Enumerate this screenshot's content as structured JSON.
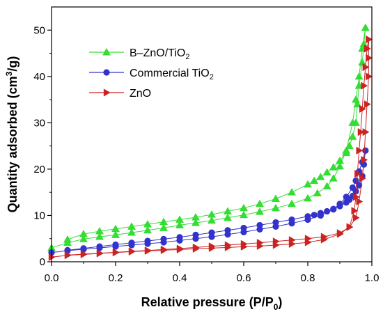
{
  "chart_data": {
    "type": "scatter",
    "title": "",
    "xlabel": {
      "main": "Relative pressure (P/P",
      "sub": "0",
      "end": ")"
    },
    "ylabel": {
      "main": "Quantity adsorbed (cm",
      "sup": "3",
      "end": "/g)"
    },
    "xlim": [
      0,
      1.0
    ],
    "ylim": [
      0,
      55
    ],
    "xticks": [
      "0.0",
      "0.2",
      "0.4",
      "0.6",
      "0.8",
      "1.0"
    ],
    "yticks": [
      "0",
      "10",
      "20",
      "30",
      "40",
      "50"
    ],
    "grid": false,
    "legend_position": "top-left",
    "series": [
      {
        "name": "B–ZnO/TiO",
        "name_sub": "2",
        "color": "#33dd33",
        "marker": "triangle-up",
        "adsorption": [
          [
            0.0,
            3.0
          ],
          [
            0.05,
            4.1
          ],
          [
            0.1,
            4.9
          ],
          [
            0.15,
            5.4
          ],
          [
            0.2,
            5.8
          ],
          [
            0.25,
            6.3
          ],
          [
            0.3,
            6.8
          ],
          [
            0.35,
            7.3
          ],
          [
            0.4,
            7.9
          ],
          [
            0.45,
            8.4
          ],
          [
            0.5,
            8.9
          ],
          [
            0.55,
            9.5
          ],
          [
            0.6,
            10.1
          ],
          [
            0.65,
            10.8
          ],
          [
            0.7,
            11.6
          ],
          [
            0.75,
            12.5
          ],
          [
            0.8,
            13.7
          ],
          [
            0.83,
            14.8
          ],
          [
            0.86,
            16.3
          ],
          [
            0.88,
            18.0
          ],
          [
            0.9,
            20.6
          ],
          [
            0.92,
            24.0
          ],
          [
            0.94,
            30.0
          ],
          [
            0.95,
            35.0
          ],
          [
            0.96,
            40.0
          ],
          [
            0.97,
            46.0
          ],
          [
            0.98,
            50.5
          ]
        ],
        "desorption": [
          [
            0.98,
            50.5
          ],
          [
            0.975,
            47.0
          ],
          [
            0.97,
            43.0
          ],
          [
            0.96,
            38.0
          ],
          [
            0.955,
            34.0
          ],
          [
            0.95,
            30.0
          ],
          [
            0.94,
            27.0
          ],
          [
            0.93,
            25.0
          ],
          [
            0.92,
            23.5
          ],
          [
            0.9,
            21.8
          ],
          [
            0.88,
            20.4
          ],
          [
            0.86,
            19.3
          ],
          [
            0.84,
            18.3
          ],
          [
            0.82,
            17.5
          ],
          [
            0.8,
            16.7
          ],
          [
            0.75,
            15.0
          ],
          [
            0.7,
            13.6
          ],
          [
            0.65,
            12.5
          ],
          [
            0.6,
            11.6
          ],
          [
            0.55,
            10.9
          ],
          [
            0.5,
            10.2
          ],
          [
            0.45,
            9.6
          ],
          [
            0.4,
            9.1
          ],
          [
            0.35,
            8.6
          ],
          [
            0.3,
            8.1
          ],
          [
            0.25,
            7.6
          ],
          [
            0.2,
            7.1
          ],
          [
            0.15,
            6.6
          ],
          [
            0.1,
            6.0
          ],
          [
            0.05,
            4.8
          ]
        ]
      },
      {
        "name": "Commercial TiO",
        "name_sub": "2",
        "color": "#3333cc",
        "marker": "circle",
        "adsorption": [
          [
            0.0,
            2.0
          ],
          [
            0.05,
            2.4
          ],
          [
            0.1,
            2.7
          ],
          [
            0.15,
            3.0
          ],
          [
            0.2,
            3.3
          ],
          [
            0.25,
            3.6
          ],
          [
            0.3,
            3.9
          ],
          [
            0.35,
            4.2
          ],
          [
            0.4,
            4.6
          ],
          [
            0.45,
            5.0
          ],
          [
            0.5,
            5.4
          ],
          [
            0.55,
            5.9
          ],
          [
            0.6,
            6.4
          ],
          [
            0.65,
            7.0
          ],
          [
            0.7,
            7.6
          ],
          [
            0.75,
            8.3
          ],
          [
            0.8,
            9.1
          ],
          [
            0.84,
            10.0
          ],
          [
            0.88,
            11.3
          ],
          [
            0.9,
            12.5
          ],
          [
            0.92,
            14.0
          ],
          [
            0.94,
            16.0
          ],
          [
            0.95,
            17.5
          ],
          [
            0.96,
            19.5
          ],
          [
            0.97,
            21.5
          ],
          [
            0.98,
            24.0
          ]
        ],
        "desorption": [
          [
            0.98,
            24.0
          ],
          [
            0.975,
            21.0
          ],
          [
            0.97,
            18.5
          ],
          [
            0.96,
            16.5
          ],
          [
            0.95,
            15.2
          ],
          [
            0.94,
            14.2
          ],
          [
            0.93,
            13.4
          ],
          [
            0.92,
            12.8
          ],
          [
            0.9,
            12.0
          ],
          [
            0.88,
            11.4
          ],
          [
            0.86,
            10.9
          ],
          [
            0.84,
            10.5
          ],
          [
            0.82,
            10.1
          ],
          [
            0.8,
            9.8
          ],
          [
            0.75,
            9.1
          ],
          [
            0.7,
            8.5
          ],
          [
            0.65,
            7.9
          ],
          [
            0.6,
            7.3
          ],
          [
            0.55,
            6.8
          ],
          [
            0.5,
            6.3
          ],
          [
            0.45,
            5.8
          ],
          [
            0.4,
            5.3
          ],
          [
            0.35,
            4.9
          ],
          [
            0.3,
            4.5
          ],
          [
            0.25,
            4.1
          ],
          [
            0.2,
            3.7
          ],
          [
            0.15,
            3.3
          ],
          [
            0.1,
            2.9
          ],
          [
            0.05,
            2.5
          ]
        ]
      },
      {
        "name": "ZnO",
        "name_sub": "",
        "color": "#cc2222",
        "marker": "triangle-right",
        "adsorption": [
          [
            0.0,
            1.0
          ],
          [
            0.05,
            1.4
          ],
          [
            0.1,
            1.6
          ],
          [
            0.15,
            1.8
          ],
          [
            0.2,
            2.0
          ],
          [
            0.25,
            2.2
          ],
          [
            0.3,
            2.35
          ],
          [
            0.35,
            2.5
          ],
          [
            0.4,
            2.65
          ],
          [
            0.45,
            2.8
          ],
          [
            0.5,
            2.95
          ],
          [
            0.55,
            3.1
          ],
          [
            0.6,
            3.25
          ],
          [
            0.65,
            3.4
          ],
          [
            0.7,
            3.6
          ],
          [
            0.75,
            3.85
          ],
          [
            0.8,
            4.2
          ],
          [
            0.85,
            4.8
          ],
          [
            0.9,
            6.0
          ],
          [
            0.93,
            7.5
          ],
          [
            0.95,
            9.5
          ],
          [
            0.96,
            13.0
          ],
          [
            0.97,
            18.0
          ],
          [
            0.975,
            22.0
          ],
          [
            0.98,
            28.0
          ],
          [
            0.985,
            34.0
          ],
          [
            0.99,
            40.0
          ],
          [
            0.99,
            44.0
          ],
          [
            0.99,
            48.0
          ]
        ],
        "desorption": [
          [
            0.99,
            48.0
          ],
          [
            0.985,
            46.0
          ],
          [
            0.98,
            42.0
          ],
          [
            0.975,
            38.0
          ],
          [
            0.97,
            33.0
          ],
          [
            0.965,
            28.0
          ],
          [
            0.96,
            24.0
          ],
          [
            0.955,
            19.0
          ],
          [
            0.95,
            14.0
          ],
          [
            0.945,
            11.0
          ],
          [
            0.93,
            7.5
          ],
          [
            0.9,
            6.2
          ],
          [
            0.85,
            5.4
          ],
          [
            0.8,
            5.0
          ],
          [
            0.75,
            4.7
          ],
          [
            0.7,
            4.4
          ],
          [
            0.65,
            4.1
          ],
          [
            0.6,
            3.85
          ],
          [
            0.55,
            3.6
          ],
          [
            0.5,
            3.35
          ],
          [
            0.45,
            3.1
          ],
          [
            0.4,
            2.85
          ],
          [
            0.35,
            2.65
          ],
          [
            0.3,
            2.45
          ],
          [
            0.25,
            2.25
          ],
          [
            0.2,
            2.05
          ],
          [
            0.15,
            1.85
          ],
          [
            0.1,
            1.65
          ],
          [
            0.05,
            1.45
          ]
        ]
      }
    ]
  }
}
